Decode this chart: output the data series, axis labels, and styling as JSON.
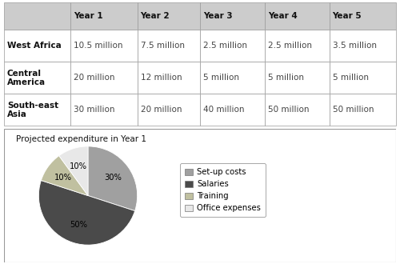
{
  "table": {
    "col_headers": [
      "",
      "Year 1",
      "Year 2",
      "Year 3",
      "Year 4",
      "Year 5"
    ],
    "rows": [
      [
        "West Africa",
        "10.5 million",
        "7.5 million",
        "2.5 million",
        "2.5 million",
        "3.5 million"
      ],
      [
        "Central\nAmerica",
        "20 million",
        "12 million",
        "5 million",
        "5 million",
        "5 million"
      ],
      [
        "South-east\nAsia",
        "30 million",
        "20 million",
        "40 million",
        "50 million",
        "50 million"
      ]
    ]
  },
  "pie": {
    "title": "Projected expenditure in Year 1",
    "labels": [
      "Set-up costs",
      "Salaries",
      "Training",
      "Office expenses"
    ],
    "sizes": [
      30,
      50,
      10,
      10
    ],
    "colors": [
      "#a0a0a0",
      "#4a4a4a",
      "#c0c0a0",
      "#e8e8e8"
    ],
    "pct_labels": [
      "30%",
      "50%",
      "10%",
      "10%"
    ],
    "start_angle": 90,
    "counterclock": false
  },
  "header_bg": "#cccccc",
  "cell_bg": "#ffffff",
  "border_color": "#999999",
  "bg_color": "#ffffff",
  "text_color": "#111111",
  "data_color": "#444444",
  "table_font_size": 7.5,
  "pie_font_size": 7.2,
  "title_font_size": 7.5
}
